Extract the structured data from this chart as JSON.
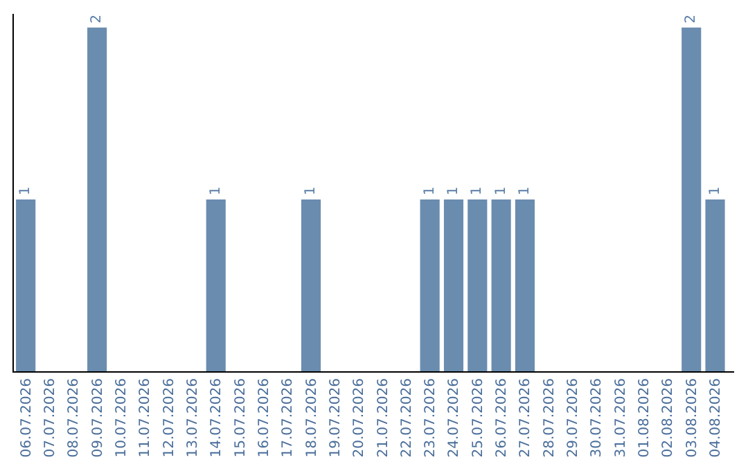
{
  "chart_data": {
    "type": "bar",
    "categories": [
      "06.07.2026",
      "07.07.2026",
      "08.07.2026",
      "09.07.2026",
      "10.07.2026",
      "11.07.2026",
      "12.07.2026",
      "13.07.2026",
      "14.07.2026",
      "15.07.2026",
      "16.07.2026",
      "17.07.2026",
      "18.07.2026",
      "19.07.2026",
      "20.07.2026",
      "21.07.2026",
      "22.07.2026",
      "23.07.2026",
      "24.07.2026",
      "25.07.2026",
      "26.07.2026",
      "27.07.2026",
      "28.07.2026",
      "29.07.2026",
      "30.07.2026",
      "31.07.2026",
      "01.08.2026",
      "02.08.2026",
      "03.08.2026",
      "04.08.2026"
    ],
    "values": [
      1,
      0,
      0,
      2,
      0,
      0,
      0,
      0,
      1,
      0,
      0,
      0,
      1,
      0,
      0,
      0,
      0,
      1,
      1,
      1,
      1,
      1,
      0,
      0,
      0,
      0,
      0,
      0,
      2,
      1
    ],
    "value_labels": [
      "1",
      null,
      null,
      "2",
      null,
      null,
      null,
      null,
      "1",
      null,
      null,
      null,
      "1",
      null,
      null,
      null,
      null,
      "1",
      "1",
      "1",
      "1",
      "1",
      null,
      null,
      null,
      null,
      null,
      null,
      "2",
      "1"
    ],
    "color": "#6a8caf",
    "ylim": [
      0,
      2.08
    ],
    "tick_labels": "x",
    "legend": false
  }
}
